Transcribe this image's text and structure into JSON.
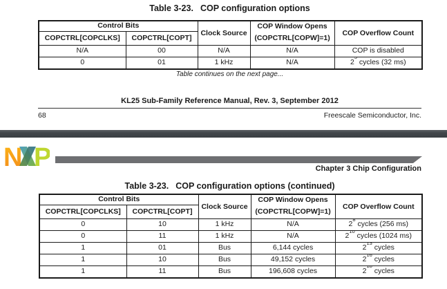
{
  "colors": {
    "page_bg": "#ffffff",
    "text": "#1a1a1a",
    "divider_dark": "#3f4447",
    "header_bar_gray": "#6e6f72",
    "logo_orange": "#f7a11f",
    "logo_blue": "#4e9fc0",
    "logo_green": "#7cb342",
    "logo_dark_teal": "#2f7290",
    "logo_dark_green": "#5e8c35",
    "logo_lime": "#bfd730"
  },
  "table_header": {
    "control_bits": "Control Bits",
    "col_copclks": "COPCTRL[COPCLKS]",
    "col_copt": "COPCTRL[COPT]",
    "col_clock_source": "Clock Source",
    "col_window_line1": "COP Window Opens",
    "col_window_line2": "(COPCTRL[COPW]=1)",
    "col_overflow": "COP Overflow Count"
  },
  "page_top": {
    "table_title_label": "Table 3-23.",
    "table_title_text": "COP configuration options",
    "rows": [
      [
        "N/A",
        "00",
        "N/A",
        "N/A",
        "COP is disabled"
      ],
      [
        "0",
        "01",
        "1 kHz",
        "N/A",
        "2^{5} cycles (32 ms)"
      ]
    ],
    "continuation_note": "Table continues on the next page...",
    "footer_manual_title": "KL25 Sub-Family Reference Manual, Rev. 3, September 2012",
    "footer_page_number": "68",
    "footer_publisher": "Freescale Semiconductor, Inc."
  },
  "page_bottom": {
    "logo_text": "NXP",
    "logo_letter_n": "N",
    "logo_letter_p": "P",
    "chapter_heading": "Chapter 3 Chip Configuration",
    "table_title_label": "Table 3-23.",
    "table_title_text": "COP configuration options (continued)",
    "rows": [
      [
        "0",
        "10",
        "1 kHz",
        "N/A",
        "2^{8} cycles (256 ms)"
      ],
      [
        "0",
        "11",
        "1 kHz",
        "N/A",
        "2^{10} cycles (1024 ms)"
      ],
      [
        "1",
        "01",
        "Bus",
        "6,144 cycles",
        "2^{13} cycles"
      ],
      [
        "1",
        "10",
        "Bus",
        "49,152 cycles",
        "2^{16} cycles"
      ],
      [
        "1",
        "11",
        "Bus",
        "196,608 cycles",
        "2^{18} cycles"
      ]
    ]
  }
}
